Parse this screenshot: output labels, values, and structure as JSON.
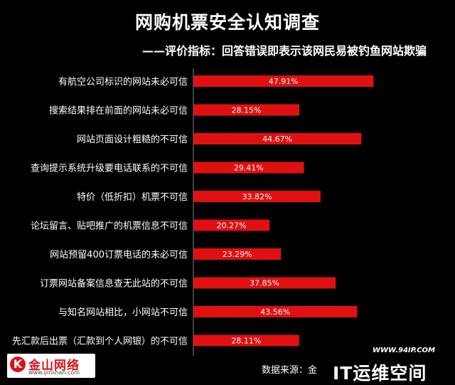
{
  "header": {
    "title": "网购机票安全认知调查",
    "subtitle": "——评价指标：回答错误即表示该网民易被钓鱼网站欺骗"
  },
  "footer": {
    "logo_name": "金山网络",
    "logo_url": "www.ijinshan.com",
    "source": "数据来源：金",
    "watermark_url": "WWW.94IP.COM",
    "watermark_brand": "IT运维空间"
  },
  "colors": {
    "bar": "#e01010",
    "background": "#000000",
    "text": "#ffffff"
  },
  "chart_data": {
    "type": "bar",
    "orientation": "horizontal",
    "categories": [
      "有航空公司标识的网站未必可信",
      "搜索结果排在前面的网站未必可信",
      "网站页面设计粗糙的不可信",
      "查询提示系统升级要电话联系的不可信",
      "特价（低折扣）机票不可信",
      "论坛留言、贴吧推广的机票信息不可信",
      "网站预留400订票电话的未必可信",
      "订票网站备案信息查无此站的不可信",
      "与知名网站相比，小网站不可信",
      "先汇款后出票（汇款到个人网银）的不可信"
    ],
    "values": [
      47.91,
      28.15,
      44.67,
      29.41,
      33.82,
      20.27,
      23.29,
      37.85,
      43.56,
      28.11
    ],
    "value_labels": [
      "47.91%",
      "28.15%",
      "44.67%",
      "29.41%",
      "33.82%",
      "20.27%",
      "23.29%",
      "37.85%",
      "43.56%",
      "28.11%"
    ],
    "xlim": [
      0,
      62
    ],
    "grid": false
  }
}
